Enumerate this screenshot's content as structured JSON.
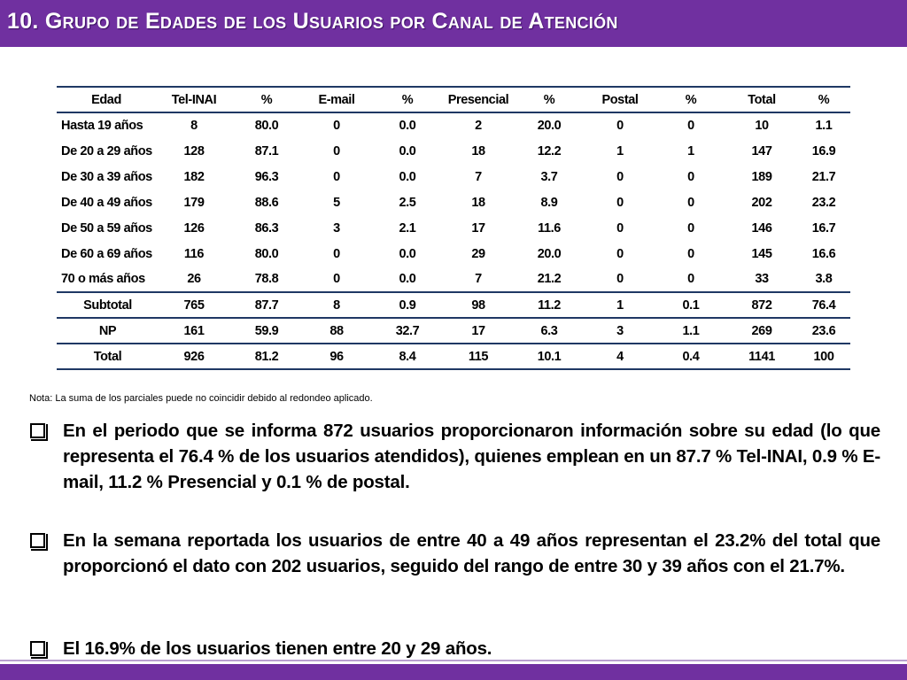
{
  "title": "10. Grupo de  Edades de los Usuarios por Canal de Atención",
  "table": {
    "headers": [
      "Edad",
      "Tel-INAI",
      "%",
      "E-mail",
      "%",
      "Presencial",
      "%",
      "Postal",
      "%",
      "Total",
      "%"
    ],
    "rows": [
      [
        "Hasta 19 años",
        "8",
        "80.0",
        "0",
        "0.0",
        "2",
        "20.0",
        "0",
        "0",
        "10",
        "1.1"
      ],
      [
        "De 20 a 29 años",
        "128",
        "87.1",
        "0",
        "0.0",
        "18",
        "12.2",
        "1",
        "1",
        "147",
        "16.9"
      ],
      [
        "De 30 a 39 años",
        "182",
        "96.3",
        "0",
        "0.0",
        "7",
        "3.7",
        "0",
        "0",
        "189",
        "21.7"
      ],
      [
        "De 40 a 49 años",
        "179",
        "88.6",
        "5",
        "2.5",
        "18",
        "8.9",
        "0",
        "0",
        "202",
        "23.2"
      ],
      [
        "De 50 a 59 años",
        "126",
        "86.3",
        "3",
        "2.1",
        "17",
        "11.6",
        "0",
        "0",
        "146",
        "16.7"
      ],
      [
        "De 60 a 69 años",
        "116",
        "80.0",
        "0",
        "0.0",
        "29",
        "20.0",
        "0",
        "0",
        "145",
        "16.6"
      ],
      [
        "70 o más años",
        "26",
        "78.8",
        "0",
        "0.0",
        "7",
        "21.2",
        "0",
        "0",
        "33",
        "3.8"
      ]
    ],
    "summary_rows": [
      [
        "Subtotal",
        "765",
        "87.7",
        "8",
        "0.9",
        "98",
        "11.2",
        "1",
        "0.1",
        "872",
        "76.4"
      ],
      [
        "NP",
        "161",
        "59.9",
        "88",
        "32.7",
        "17",
        "6.3",
        "3",
        "1.1",
        "269",
        "23.6"
      ],
      [
        "Total",
        "926",
        "81.2",
        "96",
        "8.4",
        "115",
        "10.1",
        "4",
        "0.4",
        "1141",
        "100"
      ]
    ]
  },
  "note": "Nota: La suma de los parciales puede no coincidir debido al redondeo aplicado.",
  "bullets": [
    "En el periodo que se informa 872 usuarios proporcionaron información sobre su edad (lo que representa el 76.4 % de los usuarios atendidos), quienes emplean en un 87.7 % Tel-INAI, 0.9 % E-mail, 11.2 % Presencial y 0.1 % de postal.",
    "En la semana reportada los usuarios de entre 40 a 49 años representan el 23.2% del total que proporcionó el dato con 202 usuarios, seguido del rango de entre 30 y 39 años con el 21.7%.",
    "El 16.9% de los usuarios tienen entre 20 y 29 años."
  ],
  "colors": {
    "accent": "#7030a0",
    "rule": "#1f3864"
  }
}
